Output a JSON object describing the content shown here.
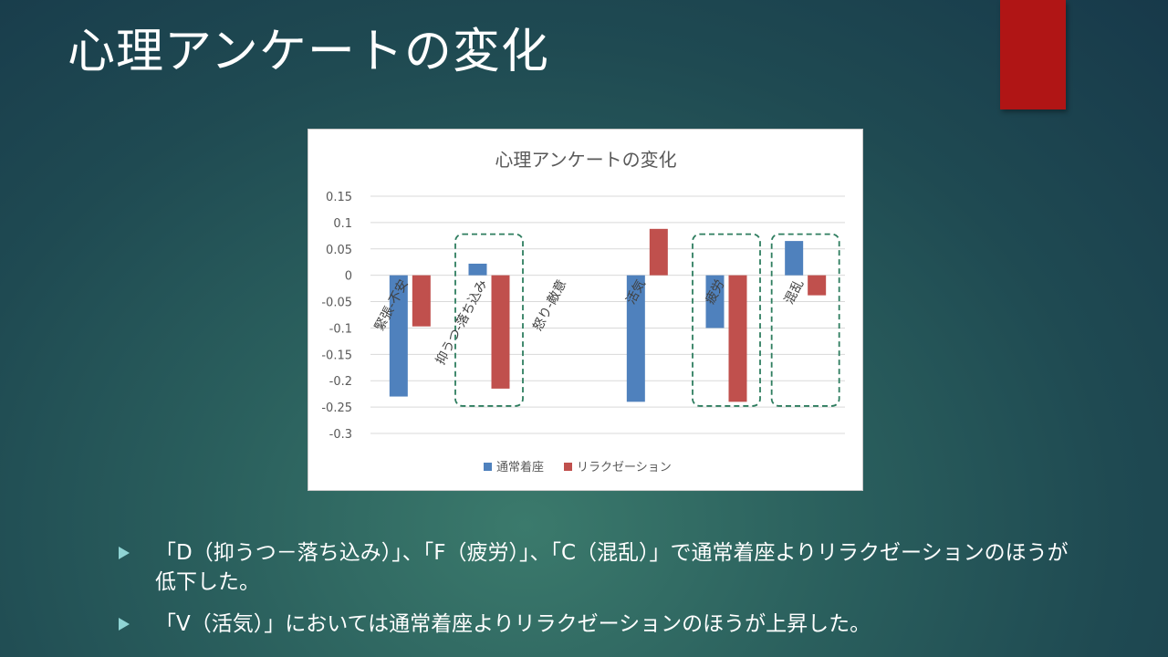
{
  "slide": {
    "title": "心理アンケートの変化",
    "accent_color": "#b01515"
  },
  "chart_data": {
    "type": "bar",
    "title": "心理アンケートの変化",
    "categories": [
      "緊張-不安",
      "抑うつ-落ち込み",
      "怒り-敵意",
      "活気",
      "疲労",
      "混乱"
    ],
    "series": [
      {
        "name": "通常着座",
        "color": "#4f81bd",
        "values": [
          -0.23,
          0.022,
          0,
          -0.24,
          -0.1,
          0.065
        ]
      },
      {
        "name": "リラクゼーション",
        "color": "#c0504d",
        "values": [
          -0.097,
          -0.215,
          0,
          0.088,
          -0.24,
          -0.038
        ]
      }
    ],
    "ylim": [
      -0.3,
      0.15
    ],
    "yticks": [
      "0.15",
      "0.1",
      "0.05",
      "0",
      "-0.05",
      "-0.1",
      "-0.15",
      "-0.2",
      "-0.25",
      "-0.3"
    ],
    "ytick_values": [
      0.15,
      0.1,
      0.05,
      0,
      -0.05,
      -0.1,
      -0.15,
      -0.2,
      -0.25,
      -0.3
    ],
    "highlighted_categories": [
      1,
      4,
      5
    ],
    "grid": true,
    "legend_position": "bottom"
  },
  "bullets": [
    {
      "text": "「D（抑うつ－落ち込み）」、「F（疲労）」、「C（混乱）」で通常着座よりリラクゼーションのほうが低下した。"
    },
    {
      "text": "「V（活気）」においては通常着座よりリラクゼーションのほうが上昇した。"
    }
  ]
}
